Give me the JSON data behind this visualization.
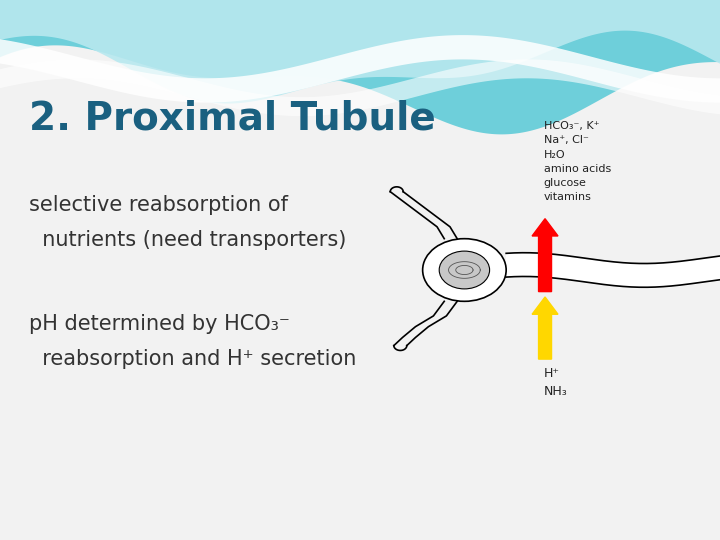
{
  "bg_color": "#f2f2f2",
  "title_text": "2. Proximal Tubule",
  "title_color": "#1a6080",
  "title_fontsize": 28,
  "bullet1_line1": "selective reabsorption of",
  "bullet1_line2": "  nutrients (need transporters)",
  "bullet2_line1": "pH determined by HCO₃⁻",
  "bullet2_line2": "  reabsorption and H⁺ secretion",
  "bullet_color": "#333333",
  "bullet_fontsize": 15,
  "label_top": "HCO₃⁻, K⁺\nNa⁺, Cl⁻\nH₂O\namino acids\nglucose\nvitamins",
  "label_bottom": "H⁺\nNH₃",
  "label_color": "#222222",
  "label_fontsize": 8,
  "wave_teal": "#6ecfda",
  "wave_light": "#b8e8ef",
  "wave_white": "#e8f6f8"
}
